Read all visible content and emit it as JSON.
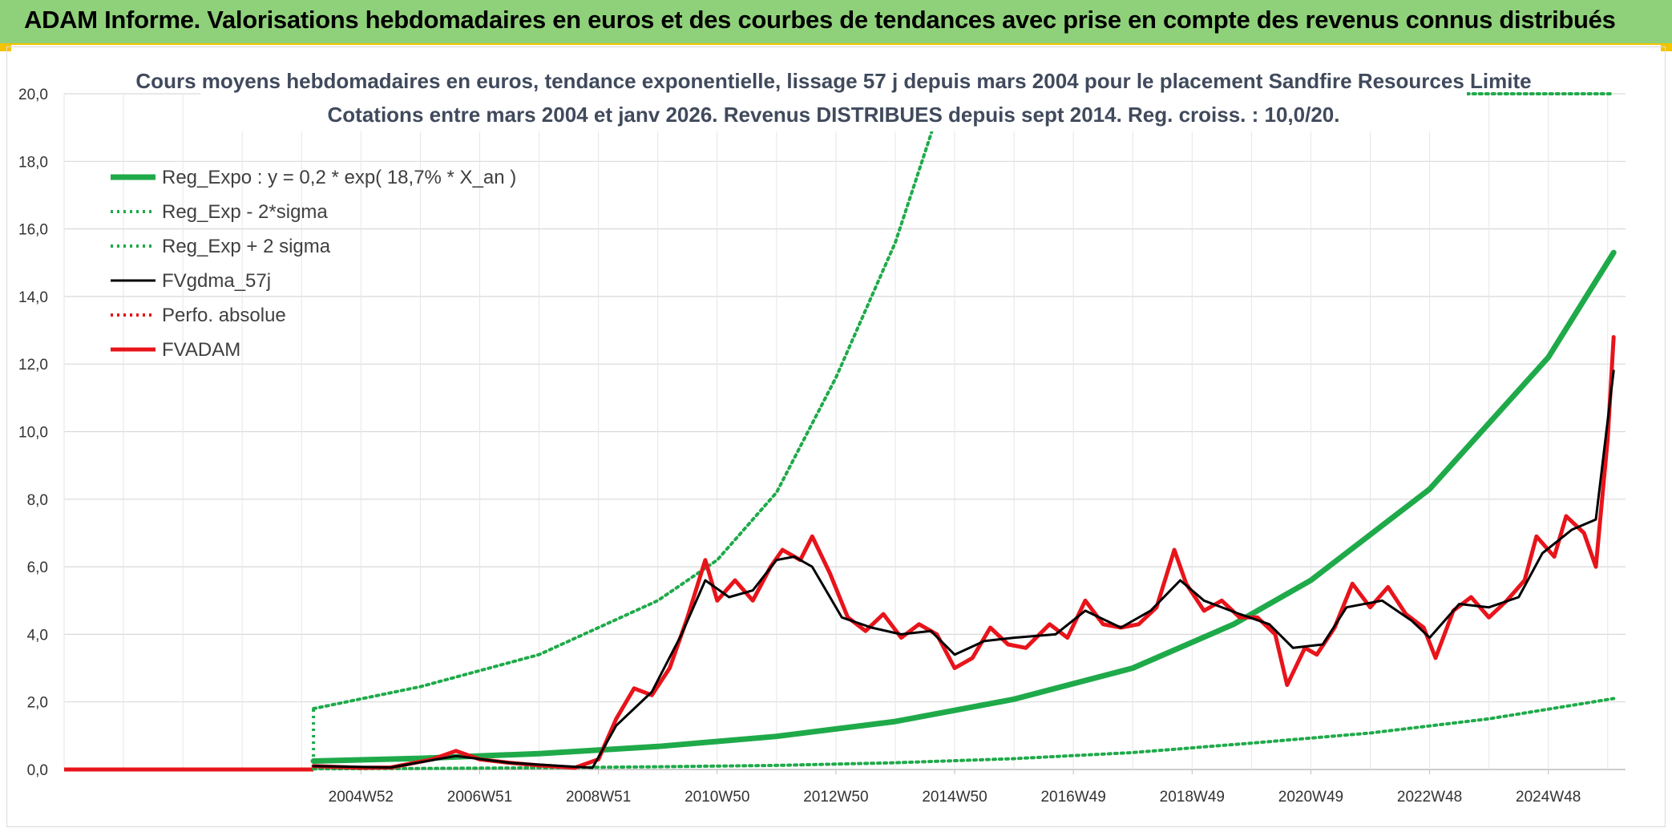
{
  "banner": {
    "title": "ADAM Informe. Valorisations hebdomadaires en euros et des courbes de tendances avec prise en compte des revenus connus distribués"
  },
  "colors": {
    "banner_bg": "#8fd17a",
    "accent_yellow": "#f3c300",
    "reg_expo": "#1faa4a",
    "fvgdma": "#000000",
    "fvadam": "#e8141b",
    "perfo": "#e8141b"
  },
  "chart_data": {
    "type": "line",
    "title": "Cours moyens hebdomadaires en euros, tendance exponentielle, lissage 57 j depuis mars 2004 pour le placement Sandfire Resources Limite",
    "subtitle": "Cotations entre mars 2004 et janv 2026. Revenus DISTRIBUES depuis sept 2014. Reg. croiss. : 10,0/20.",
    "xlabel": "",
    "ylabel": "",
    "ylim": [
      0,
      20
    ],
    "y_ticks": [
      "0,0",
      "2,0",
      "4,0",
      "6,0",
      "8,0",
      "10,0",
      "12,0",
      "14,0",
      "16,0",
      "18,0",
      "20,0"
    ],
    "x_ticks": [
      "2004W52",
      "2006W51",
      "2008W51",
      "2010W50",
      "2012W50",
      "2014W50",
      "2016W49",
      "2018W49",
      "2020W49",
      "2022W48",
      "2024W48"
    ],
    "grid": true,
    "legend_position": "top-left",
    "series": [
      {
        "name": "Reg_Expo : y = 0,2 * exp( 18,7% *  X_an )",
        "style": "solid-thick",
        "color": "#1faa4a",
        "points": [
          [
            2004.2,
            0.25
          ],
          [
            2006,
            0.33
          ],
          [
            2008,
            0.47
          ],
          [
            2010,
            0.68
          ],
          [
            2012,
            0.98
          ],
          [
            2014,
            1.42
          ],
          [
            2016,
            2.08
          ],
          [
            2018,
            3.0
          ],
          [
            2019.7,
            4.3
          ],
          [
            2021,
            5.6
          ],
          [
            2023,
            8.3
          ],
          [
            2025,
            12.2
          ],
          [
            2026.1,
            15.3
          ]
        ]
      },
      {
        "name": "Reg_Exp - 2*sigma",
        "style": "dotted",
        "color": "#1faa4a",
        "points": [
          [
            2004.2,
            0.02
          ],
          [
            2006,
            0.03
          ],
          [
            2008,
            0.05
          ],
          [
            2010,
            0.08
          ],
          [
            2012,
            0.12
          ],
          [
            2014,
            0.2
          ],
          [
            2016,
            0.32
          ],
          [
            2018,
            0.5
          ],
          [
            2020,
            0.78
          ],
          [
            2022,
            1.08
          ],
          [
            2024,
            1.5
          ],
          [
            2026.1,
            2.1
          ]
        ]
      },
      {
        "name": "Reg_Exp + 2 sigma",
        "style": "dotted",
        "color": "#1faa4a",
        "points": [
          [
            2004.2,
            1.8
          ],
          [
            2006,
            2.45
          ],
          [
            2008,
            3.4
          ],
          [
            2010,
            5.0
          ],
          [
            2011,
            6.2
          ],
          [
            2012,
            8.2
          ],
          [
            2013,
            11.6
          ],
          [
            2014,
            15.6
          ],
          [
            2014.6,
            18.8
          ],
          [
            2014.8,
            20.0
          ],
          [
            2026.1,
            20.0
          ]
        ]
      },
      {
        "name": "FVgdma_57j",
        "style": "solid",
        "color": "#000000",
        "points": [
          [
            2004.2,
            0.1
          ],
          [
            2005.5,
            0.06
          ],
          [
            2006.6,
            0.4
          ],
          [
            2007.5,
            0.2
          ],
          [
            2008.4,
            0.1
          ],
          [
            2008.9,
            0.05
          ],
          [
            2009.3,
            1.3
          ],
          [
            2009.9,
            2.3
          ],
          [
            2010.4,
            4.0
          ],
          [
            2010.8,
            5.6
          ],
          [
            2011.2,
            5.1
          ],
          [
            2011.6,
            5.3
          ],
          [
            2012.0,
            6.2
          ],
          [
            2012.3,
            6.3
          ],
          [
            2012.6,
            6.0
          ],
          [
            2013.1,
            4.5
          ],
          [
            2013.6,
            4.2
          ],
          [
            2014.1,
            4.0
          ],
          [
            2014.6,
            4.1
          ],
          [
            2015.0,
            3.4
          ],
          [
            2015.5,
            3.8
          ],
          [
            2016.0,
            3.9
          ],
          [
            2016.7,
            4.0
          ],
          [
            2017.2,
            4.7
          ],
          [
            2017.8,
            4.2
          ],
          [
            2018.3,
            4.7
          ],
          [
            2018.8,
            5.6
          ],
          [
            2019.2,
            5.0
          ],
          [
            2019.8,
            4.6
          ],
          [
            2020.3,
            4.3
          ],
          [
            2020.7,
            3.6
          ],
          [
            2021.2,
            3.7
          ],
          [
            2021.6,
            4.8
          ],
          [
            2022.2,
            5.0
          ],
          [
            2022.7,
            4.4
          ],
          [
            2023.0,
            3.9
          ],
          [
            2023.5,
            4.9
          ],
          [
            2024.0,
            4.8
          ],
          [
            2024.5,
            5.1
          ],
          [
            2024.9,
            6.4
          ],
          [
            2025.4,
            7.1
          ],
          [
            2025.8,
            7.4
          ],
          [
            2026.1,
            11.8
          ]
        ]
      },
      {
        "name": "Perfo. absolue",
        "style": "dotted",
        "color": "#e8141b",
        "points": []
      },
      {
        "name": "FVADAM",
        "style": "solid-thick",
        "color": "#e8141b",
        "points": [
          [
            2004.2,
            0.1
          ],
          [
            2005.0,
            0.05
          ],
          [
            2005.5,
            0.06
          ],
          [
            2006.2,
            0.3
          ],
          [
            2006.6,
            0.55
          ],
          [
            2007.0,
            0.3
          ],
          [
            2007.5,
            0.2
          ],
          [
            2008.0,
            0.12
          ],
          [
            2008.6,
            0.05
          ],
          [
            2009.0,
            0.3
          ],
          [
            2009.3,
            1.5
          ],
          [
            2009.6,
            2.4
          ],
          [
            2009.9,
            2.2
          ],
          [
            2010.2,
            3.0
          ],
          [
            2010.5,
            4.5
          ],
          [
            2010.8,
            6.2
          ],
          [
            2011.0,
            5.0
          ],
          [
            2011.3,
            5.6
          ],
          [
            2011.6,
            5.0
          ],
          [
            2011.9,
            6.0
          ],
          [
            2012.1,
            6.5
          ],
          [
            2012.4,
            6.2
          ],
          [
            2012.6,
            6.9
          ],
          [
            2012.9,
            5.8
          ],
          [
            2013.2,
            4.5
          ],
          [
            2013.5,
            4.1
          ],
          [
            2013.8,
            4.6
          ],
          [
            2014.1,
            3.9
          ],
          [
            2014.4,
            4.3
          ],
          [
            2014.7,
            4.0
          ],
          [
            2015.0,
            3.0
          ],
          [
            2015.3,
            3.3
          ],
          [
            2015.6,
            4.2
          ],
          [
            2015.9,
            3.7
          ],
          [
            2016.2,
            3.6
          ],
          [
            2016.6,
            4.3
          ],
          [
            2016.9,
            3.9
          ],
          [
            2017.2,
            5.0
          ],
          [
            2017.5,
            4.3
          ],
          [
            2017.8,
            4.2
          ],
          [
            2018.1,
            4.3
          ],
          [
            2018.4,
            4.8
          ],
          [
            2018.7,
            6.5
          ],
          [
            2018.9,
            5.5
          ],
          [
            2019.2,
            4.7
          ],
          [
            2019.5,
            5.0
          ],
          [
            2019.8,
            4.5
          ],
          [
            2020.1,
            4.5
          ],
          [
            2020.4,
            4.0
          ],
          [
            2020.6,
            2.5
          ],
          [
            2020.9,
            3.6
          ],
          [
            2021.1,
            3.4
          ],
          [
            2021.4,
            4.2
          ],
          [
            2021.7,
            5.5
          ],
          [
            2022.0,
            4.8
          ],
          [
            2022.3,
            5.4
          ],
          [
            2022.6,
            4.6
          ],
          [
            2022.9,
            4.2
          ],
          [
            2023.1,
            3.3
          ],
          [
            2023.4,
            4.7
          ],
          [
            2023.7,
            5.1
          ],
          [
            2024.0,
            4.5
          ],
          [
            2024.3,
            5.0
          ],
          [
            2024.6,
            5.6
          ],
          [
            2024.8,
            6.9
          ],
          [
            2025.1,
            6.3
          ],
          [
            2025.3,
            7.5
          ],
          [
            2025.6,
            7.0
          ],
          [
            2025.8,
            6.0
          ],
          [
            2026.0,
            9.8
          ],
          [
            2026.1,
            12.8
          ]
        ]
      }
    ]
  }
}
